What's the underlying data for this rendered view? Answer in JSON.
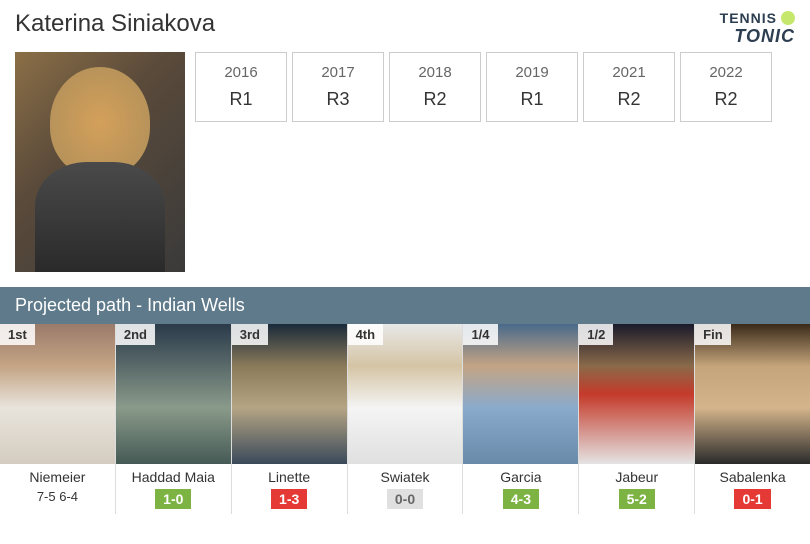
{
  "player": {
    "name": "Katerina Siniakova"
  },
  "logo": {
    "top": "TENNIS",
    "bottom": "TONIC"
  },
  "history": [
    {
      "year": "2016",
      "result": "R1"
    },
    {
      "year": "2017",
      "result": "R3"
    },
    {
      "year": "2018",
      "result": "R2"
    },
    {
      "year": "2019",
      "result": "R1"
    },
    {
      "year": "2021",
      "result": "R2"
    },
    {
      "year": "2022",
      "result": "R2"
    }
  ],
  "projected": {
    "title": "Projected path - Indian Wells"
  },
  "opponents": [
    {
      "round": "1st",
      "name": "Niemeier",
      "score": "7-5 6-4",
      "h2h": null,
      "h2h_class": null,
      "photo_bg": "linear-gradient(180deg, #9a7a6a 0%, #c4a484 30%, #e8e4dc 60%, #d4ccc0 100%)"
    },
    {
      "round": "2nd",
      "name": "Haddad Maia",
      "score": null,
      "h2h": "1-0",
      "h2h_class": "h2h-green",
      "photo_bg": "linear-gradient(180deg, #2a3a4a 0%, #5a6a6a 30%, #8a9a8a 60%, #455a55 100%)"
    },
    {
      "round": "3rd",
      "name": "Linette",
      "score": null,
      "h2h": "1-3",
      "h2h_class": "h2h-red",
      "photo_bg": "linear-gradient(180deg, #1a2a3a 0%, #8a7a5a 30%, #b4a484 60%, #3a4a5a 100%)"
    },
    {
      "round": "4th",
      "name": "Swiatek",
      "score": null,
      "h2h": "0-0",
      "h2h_class": "h2h-neutral",
      "photo_bg": "linear-gradient(180deg, #e8e8e8 0%, #d4c4a4 30%, #f4f4f4 60%, #e0e0e0 100%)"
    },
    {
      "round": "1/4",
      "name": "Garcia",
      "score": null,
      "h2h": "4-3",
      "h2h_class": "h2h-green",
      "photo_bg": "linear-gradient(180deg, #4a6a8a 0%, #c4a484 30%, #8aaacc 60%, #6a8aaa 100%)"
    },
    {
      "round": "1/2",
      "name": "Jabeur",
      "score": null,
      "h2h": "5-2",
      "h2h_class": "h2h-green",
      "photo_bg": "linear-gradient(180deg, #1a1a2a 0%, #8a6a4a 30%, #c43a2a 50%, #e4e4e4 100%)"
    },
    {
      "round": "Fin",
      "name": "Sabalenka",
      "score": null,
      "h2h": "0-1",
      "h2h_class": "h2h-red",
      "photo_bg": "linear-gradient(180deg, #3a2a1a 0%, #c4a47a 30%, #d4b48a 60%, #2a2a2a 100%)"
    }
  ]
}
